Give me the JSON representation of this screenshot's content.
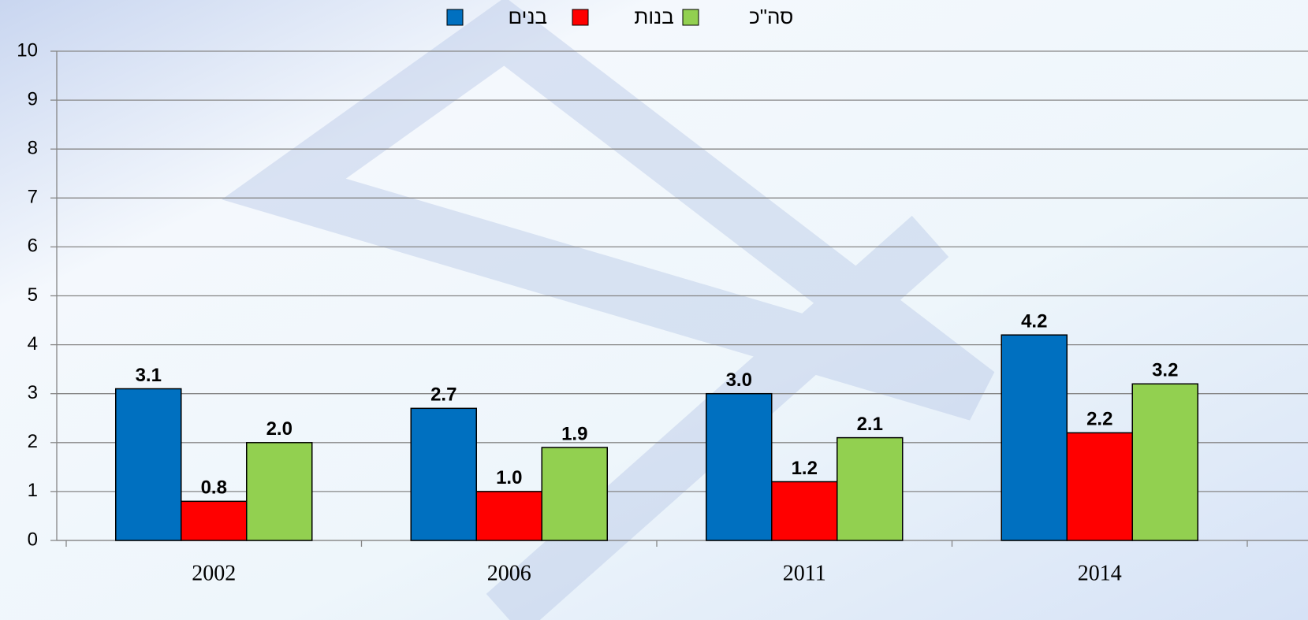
{
  "chart_data": {
    "type": "bar",
    "categories": [
      "2002",
      "2006",
      "2011",
      "2014"
    ],
    "series": [
      {
        "name": "בנים",
        "color": "#0070c0",
        "values": [
          3.1,
          2.7,
          3.0,
          4.2
        ],
        "value_labels": [
          "3.1",
          "2.7",
          "3.0",
          "4.2"
        ]
      },
      {
        "name": "בנות",
        "color": "#ff0000",
        "values": [
          0.8,
          1.0,
          1.2,
          2.2
        ],
        "value_labels": [
          "0.8",
          "1.0",
          "1.2",
          "2.2"
        ]
      },
      {
        "name": "סה\"כ",
        "color": "#92d050",
        "values": [
          2.0,
          1.9,
          2.1,
          3.2
        ],
        "value_labels": [
          "2.0",
          "1.9",
          "2.1",
          "3.2"
        ]
      }
    ],
    "ylim": [
      0,
      10
    ],
    "yticks": [
      0,
      1,
      2,
      3,
      4,
      5,
      6,
      7,
      8,
      9,
      10
    ],
    "grid": true,
    "legend": "top"
  }
}
